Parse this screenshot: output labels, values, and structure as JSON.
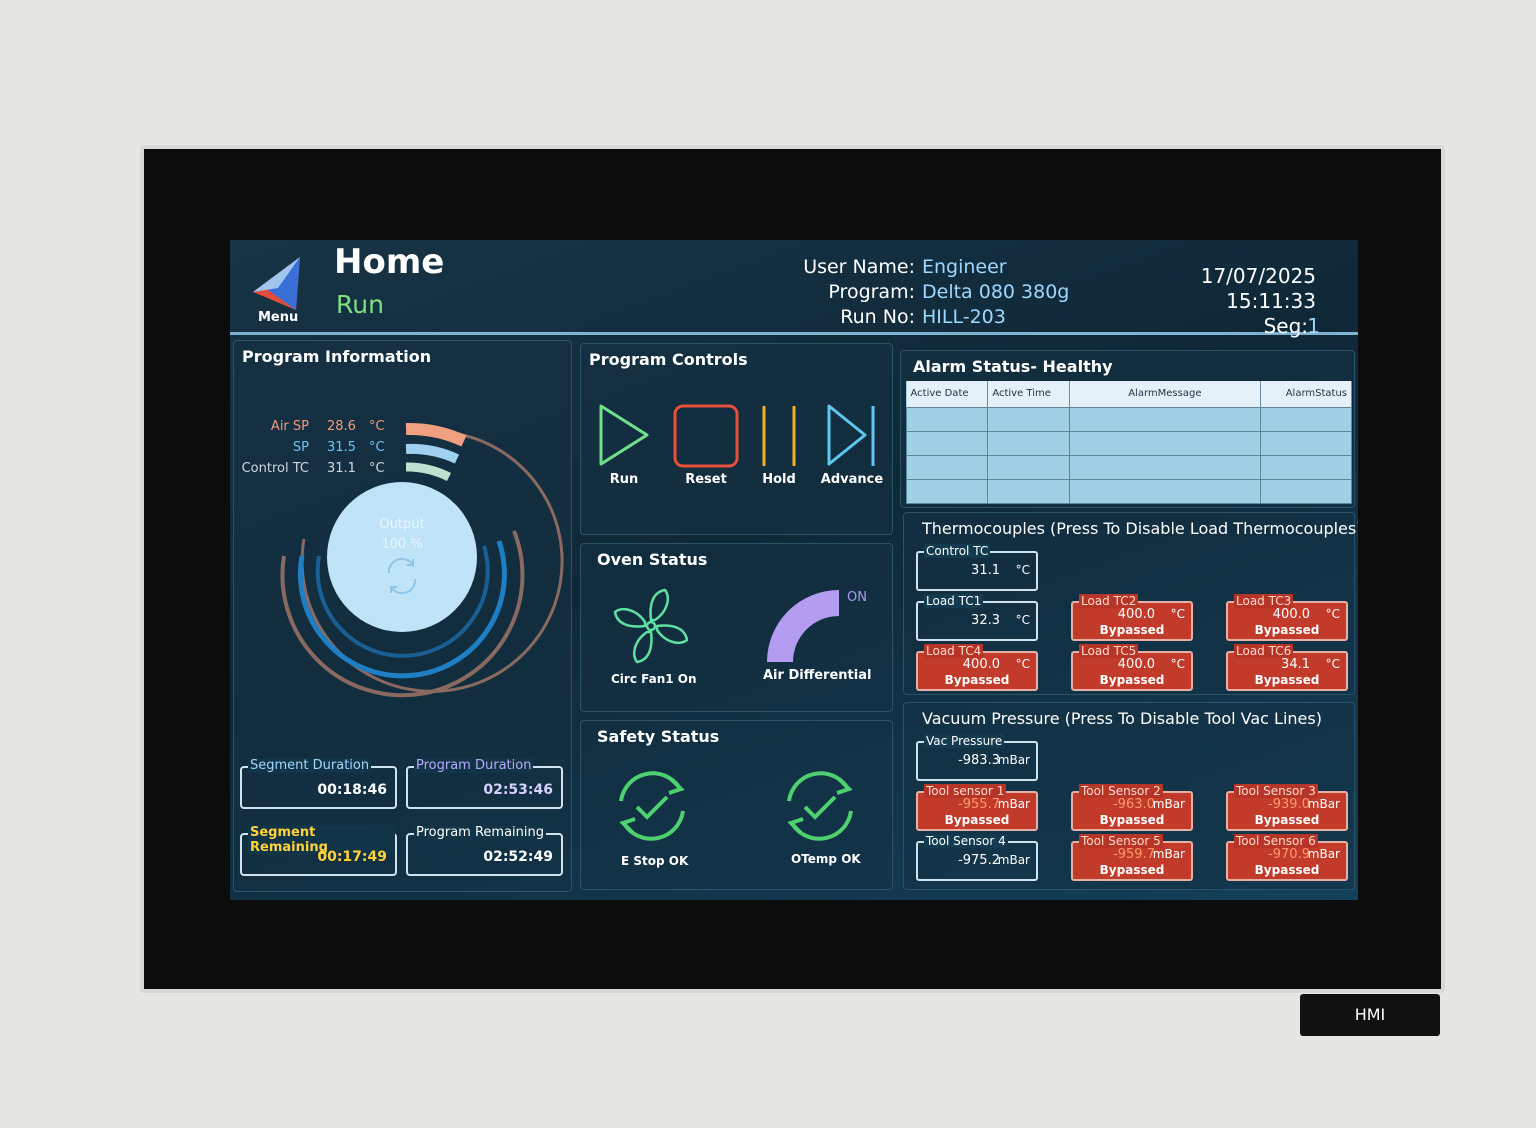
{
  "header": {
    "menu": "Menu",
    "title": "Home",
    "state": "Run",
    "fields": [
      {
        "label": "User Name:",
        "value": "Engineer"
      },
      {
        "label": "Program:",
        "value": "Delta 080 380g"
      },
      {
        "label": "Run No:",
        "value": "HILL-203"
      }
    ],
    "date": "17/07/2025",
    "time": "15:11:33",
    "seg_label": "Seg:",
    "seg_value": "1"
  },
  "program_information": {
    "title": "Program Information",
    "readings": [
      {
        "label": "Air SP",
        "value": "28.6",
        "unit": "°C"
      },
      {
        "label": "SP",
        "value": "31.5",
        "unit": "°C"
      },
      {
        "label": "Control TC",
        "value": "31.1",
        "unit": "°C"
      }
    ],
    "output_label": "Output",
    "output_value": "100 %",
    "durations": [
      {
        "label": "Segment Duration",
        "value": "00:18:46"
      },
      {
        "label": "Program Duration",
        "value": "02:53:46"
      },
      {
        "label": "Segment Remaining",
        "value": "00:17:49"
      },
      {
        "label": "Program Remaining",
        "value": "02:52:49"
      }
    ]
  },
  "program_controls": {
    "title": "Program Controls",
    "buttons": [
      "Run",
      "Reset",
      "Hold",
      "Advance"
    ]
  },
  "oven_status": {
    "title": "Oven Status",
    "fan": "Circ Fan1 On",
    "air_state": "ON",
    "air": "Air Differential"
  },
  "safety_status": {
    "title": "Safety Status",
    "items": [
      "E Stop OK",
      "OTemp OK"
    ]
  },
  "alarm_status": {
    "title": "Alarm Status- Healthy",
    "columns": [
      "Active Date",
      "Active Time",
      "AlarmMessage",
      "AlarmStatus"
    ]
  },
  "thermocouples": {
    "title": "Thermocouples (Press To Disable Load Thermocouples)",
    "sensors": [
      {
        "label": "Control TC",
        "value": "31.1",
        "unit": "°C"
      },
      {
        "label": "Load TC1",
        "value": "32.3",
        "unit": "°C"
      },
      {
        "label": "Load TC2",
        "value": "400.0",
        "unit": "°C",
        "status": "Bypassed"
      },
      {
        "label": "Load TC3",
        "value": "400.0",
        "unit": "°C",
        "status": "Bypassed"
      },
      {
        "label": "Load TC4",
        "value": "400.0",
        "unit": "°C",
        "status": "Bypassed"
      },
      {
        "label": "Load TC5",
        "value": "400.0",
        "unit": "°C",
        "status": "Bypassed"
      },
      {
        "label": "Load TC6",
        "value": "34.1",
        "unit": "°C",
        "status": "Bypassed"
      }
    ]
  },
  "vacuum": {
    "title": "Vacuum Pressure (Press To Disable Tool Vac Lines)",
    "sensors": [
      {
        "label": "Vac Pressure",
        "value": "-983.3",
        "unit": "mBar"
      },
      {
        "label": "Tool sensor 1",
        "value": "-955.7",
        "unit": "mBar",
        "status": "Bypassed"
      },
      {
        "label": "Tool Sensor 2",
        "value": "-963.0",
        "unit": "mBar",
        "status": "Bypassed"
      },
      {
        "label": "Tool Sensor 3",
        "value": "-939.0",
        "unit": "mBar",
        "status": "Bypassed"
      },
      {
        "label": "Tool Sensor 4",
        "value": "-975.2",
        "unit": "mBar"
      },
      {
        "label": "Tool Sensor 5",
        "value": "-959.7",
        "unit": "mBar",
        "status": "Bypassed"
      },
      {
        "label": "Tool Sensor 6",
        "value": "-970.9",
        "unit": "mBar",
        "status": "Bypassed"
      }
    ]
  },
  "plate": "HMI"
}
